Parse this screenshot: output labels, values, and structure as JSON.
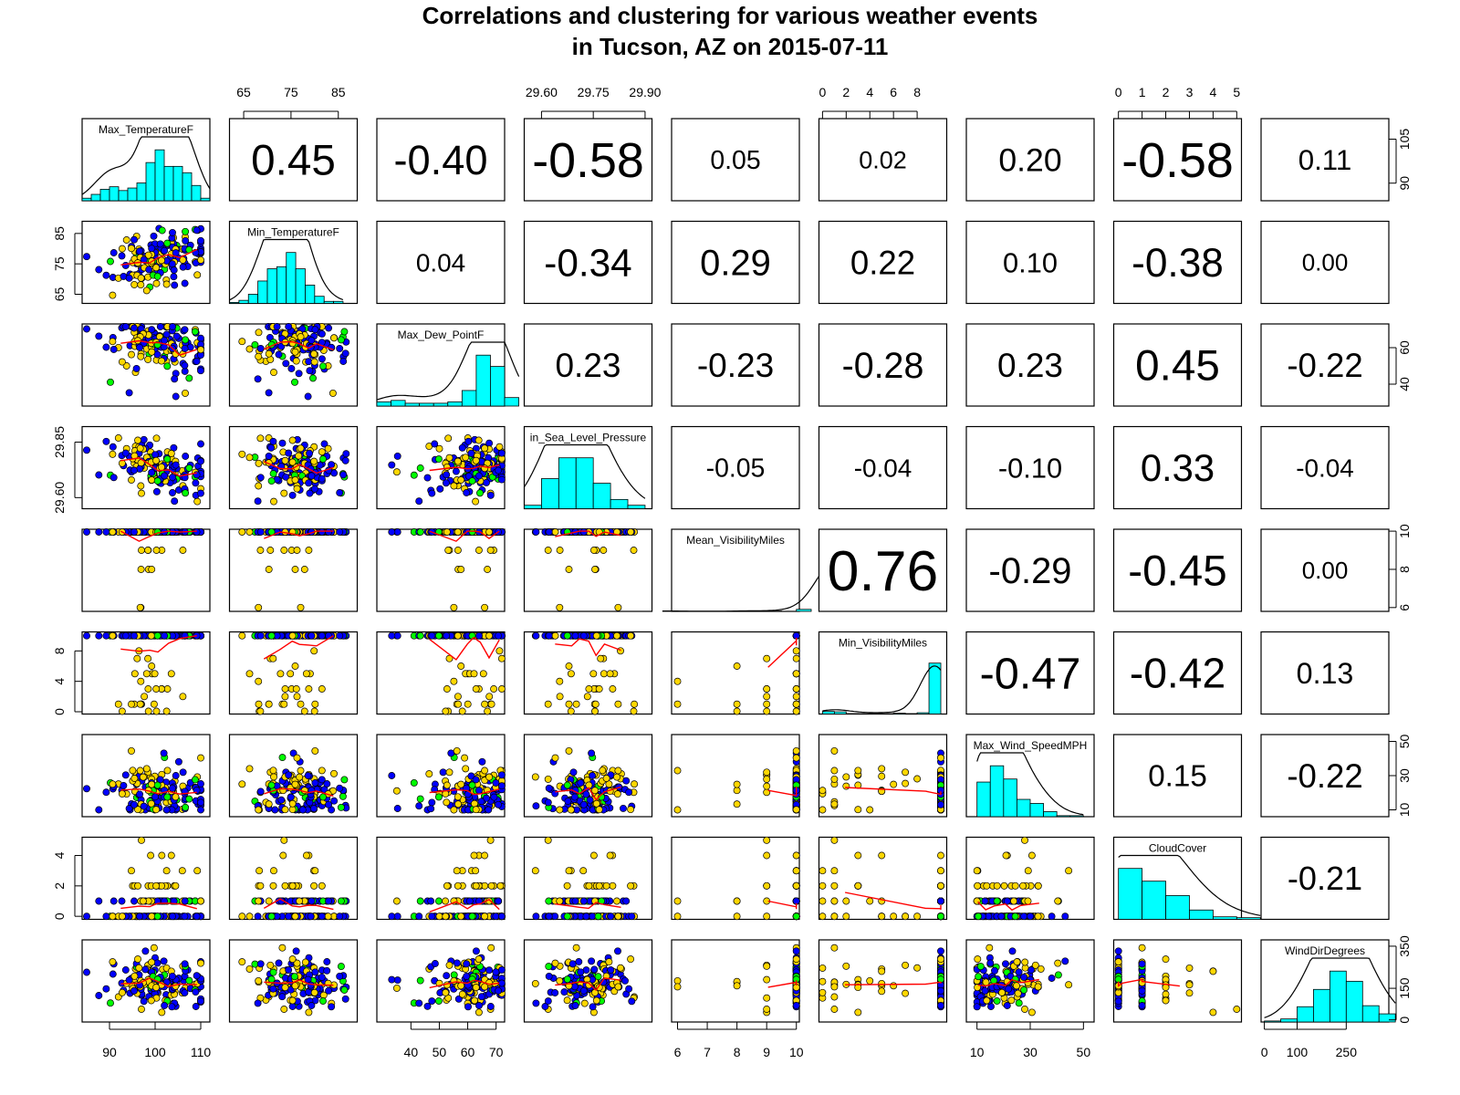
{
  "title_line1": "Correlations and clustering for various weather events",
  "title_line2": "in Tucson, AZ on 2015-07-11",
  "chart_data": {
    "type": "scatter",
    "subtype": "scatterplot matrix (pairs plot) with histograms and density curves on the diagonal, correlation coefficients in the upper panels, scatter plots with red loess smoothers in the lower panels",
    "variables": [
      "Max_TemperatureF",
      "Min_TemperatureF",
      "Max_Dew_PointF",
      "Min_Sea_Level_PressureIn",
      "Mean_VisibilityMiles",
      "Min_VisibilityMiles",
      "Max_Wind_SpeedMPH",
      "CloudCover",
      "WindDirDegrees"
    ],
    "diagonal_labels_as_shown": [
      "Max_TemperatureF",
      "Min_TemperatureF",
      "Max_Dew_PointF",
      "in_Sea_Level_Pressure",
      "Mean_VisibilityMiles",
      "Min_VisibilityMiles",
      "Max_Wind_SpeedMPH",
      "CloudCover",
      "WindDirDegrees"
    ],
    "ranges": [
      [
        84,
        112
      ],
      [
        62,
        89
      ],
      [
        28,
        73
      ],
      [
        29.55,
        29.92
      ],
      [
        5.8,
        10.1
      ],
      [
        -0.3,
        10.5
      ],
      [
        6,
        54
      ],
      [
        -0.2,
        5.2
      ],
      [
        -10,
        380
      ]
    ],
    "axis_ticks": [
      [
        90,
        100,
        110
      ],
      [
        65,
        75,
        85
      ],
      [
        40,
        50,
        60,
        70
      ],
      [
        29.6,
        29.75,
        29.9
      ],
      [
        6,
        7,
        8,
        9,
        10
      ],
      [
        0,
        2,
        4,
        6,
        8
      ],
      [
        10,
        30,
        50
      ],
      [
        0,
        1,
        2,
        3,
        4,
        5
      ],
      [
        0,
        100,
        250
      ]
    ],
    "axis_tick_labels": {
      "top": {
        "1": [
          "65",
          "75",
          "85"
        ],
        "3": [
          "29.60",
          "29.75",
          "29.90"
        ],
        "5": [
          "0",
          "2",
          "4",
          "6",
          "8"
        ],
        "7": [
          "0",
          "1",
          "2",
          "3",
          "4",
          "5"
        ]
      },
      "bottom": {
        "0": [
          "90",
          "100",
          "110"
        ],
        "2": [
          "40",
          "50",
          "60",
          "70"
        ],
        "4": [
          "6",
          "7",
          "8",
          "9",
          "10"
        ],
        "6": [
          "10",
          "30",
          "50"
        ],
        "8": [
          "0",
          "100",
          "250"
        ]
      },
      "left": {
        "1": [
          "65",
          "75",
          "85"
        ],
        "3": [
          "29.60",
          "29.85"
        ],
        "5": [
          "0",
          "4",
          "8"
        ],
        "7": [
          "0",
          "2",
          "4"
        ]
      },
      "right": {
        "0": [
          "90",
          "105"
        ],
        "2": [
          "40",
          "60"
        ],
        "4": [
          "6",
          "8",
          "10"
        ],
        "6": [
          "10",
          "30",
          "50"
        ],
        "8": [
          "0",
          "150",
          "350"
        ]
      }
    },
    "correlations": [
      {
        "row": 1,
        "col": 2,
        "r": "0.45"
      },
      {
        "row": 1,
        "col": 3,
        "r": "-0.40"
      },
      {
        "row": 1,
        "col": 4,
        "r": "-0.58"
      },
      {
        "row": 1,
        "col": 5,
        "r": "0.05"
      },
      {
        "row": 1,
        "col": 6,
        "r": "0.02"
      },
      {
        "row": 1,
        "col": 7,
        "r": "0.20"
      },
      {
        "row": 1,
        "col": 8,
        "r": "-0.58"
      },
      {
        "row": 1,
        "col": 9,
        "r": "0.11"
      },
      {
        "row": 2,
        "col": 3,
        "r": "0.04"
      },
      {
        "row": 2,
        "col": 4,
        "r": "-0.34"
      },
      {
        "row": 2,
        "col": 5,
        "r": "0.29"
      },
      {
        "row": 2,
        "col": 6,
        "r": "0.22"
      },
      {
        "row": 2,
        "col": 7,
        "r": "0.10"
      },
      {
        "row": 2,
        "col": 8,
        "r": "-0.38"
      },
      {
        "row": 2,
        "col": 9,
        "r": "0.00"
      },
      {
        "row": 3,
        "col": 4,
        "r": "0.23"
      },
      {
        "row": 3,
        "col": 5,
        "r": "-0.23"
      },
      {
        "row": 3,
        "col": 6,
        "r": "-0.28"
      },
      {
        "row": 3,
        "col": 7,
        "r": "0.23"
      },
      {
        "row": 3,
        "col": 8,
        "r": "0.45"
      },
      {
        "row": 3,
        "col": 9,
        "r": "-0.22"
      },
      {
        "row": 4,
        "col": 5,
        "r": "-0.05"
      },
      {
        "row": 4,
        "col": 6,
        "r": "-0.04"
      },
      {
        "row": 4,
        "col": 7,
        "r": "-0.10"
      },
      {
        "row": 4,
        "col": 8,
        "r": "0.33"
      },
      {
        "row": 4,
        "col": 9,
        "r": "-0.04"
      },
      {
        "row": 5,
        "col": 6,
        "r": "0.76"
      },
      {
        "row": 5,
        "col": 7,
        "r": "-0.29"
      },
      {
        "row": 5,
        "col": 8,
        "r": "-0.45"
      },
      {
        "row": 5,
        "col": 9,
        "r": "0.00"
      },
      {
        "row": 6,
        "col": 7,
        "r": "-0.47"
      },
      {
        "row": 6,
        "col": 8,
        "r": "-0.42"
      },
      {
        "row": 6,
        "col": 9,
        "r": "0.13"
      },
      {
        "row": 7,
        "col": 8,
        "r": "0.15"
      },
      {
        "row": 7,
        "col": 9,
        "r": "-0.22"
      },
      {
        "row": 8,
        "col": 9,
        "r": "-0.21"
      }
    ],
    "histograms": [
      {
        "var": "Max_TemperatureF",
        "bin_width": 2,
        "bin_start": 84,
        "counts": [
          2,
          5,
          9,
          11,
          8,
          10,
          14,
          30,
          40,
          27,
          27,
          22,
          12,
          2
        ]
      },
      {
        "var": "Min_TemperatureF",
        "bin_width": 2,
        "bin_start": 62,
        "counts": [
          1,
          3,
          9,
          22,
          34,
          36,
          50,
          34,
          18,
          7,
          2,
          2
        ]
      },
      {
        "var": "Max_Dew_PointF",
        "bin_width": 5,
        "bin_start": 28,
        "counts": [
          3,
          4,
          2,
          2,
          2,
          3,
          11,
          36,
          28,
          6
        ]
      },
      {
        "var": "Min_Sea_Level_PressureIn",
        "bin_width": 0.05,
        "bin_start": 29.55,
        "counts": [
          3,
          26,
          44,
          44,
          22,
          8,
          3
        ]
      },
      {
        "var": "Mean_VisibilityMiles",
        "bin_width": 0.5,
        "bin_start": 5.5,
        "counts": [
          1,
          0,
          0,
          0,
          0,
          1,
          0,
          1,
          0,
          5,
          0,
          126
        ]
      },
      {
        "var": "Min_VisibilityMiles",
        "bin_width": 1,
        "bin_start": 0,
        "counts": [
          6,
          5,
          1,
          1,
          1,
          1,
          2,
          1,
          3,
          118
        ]
      },
      {
        "var": "Max_Wind_SpeedMPH",
        "bin_width": 5,
        "bin_start": 10,
        "counts": [
          34,
          50,
          37,
          17,
          13,
          5,
          1,
          1
        ]
      },
      {
        "var": "CloudCover",
        "bin_width": 1,
        "bin_start": 0,
        "counts": [
          60,
          45,
          28,
          11,
          3,
          2
        ]
      },
      {
        "var": "WindDirDegrees",
        "bin_width": 50,
        "bin_start": 0,
        "counts": [
          1,
          3,
          15,
          32,
          50,
          40,
          16,
          8
        ]
      }
    ],
    "point_colors": {
      "cluster_1": "#ffd700",
      "cluster_2": "#0000ff",
      "cluster_3": "#00ff00"
    },
    "smoother_color": "#ff0000",
    "histogram_fill": "#00ffff"
  }
}
